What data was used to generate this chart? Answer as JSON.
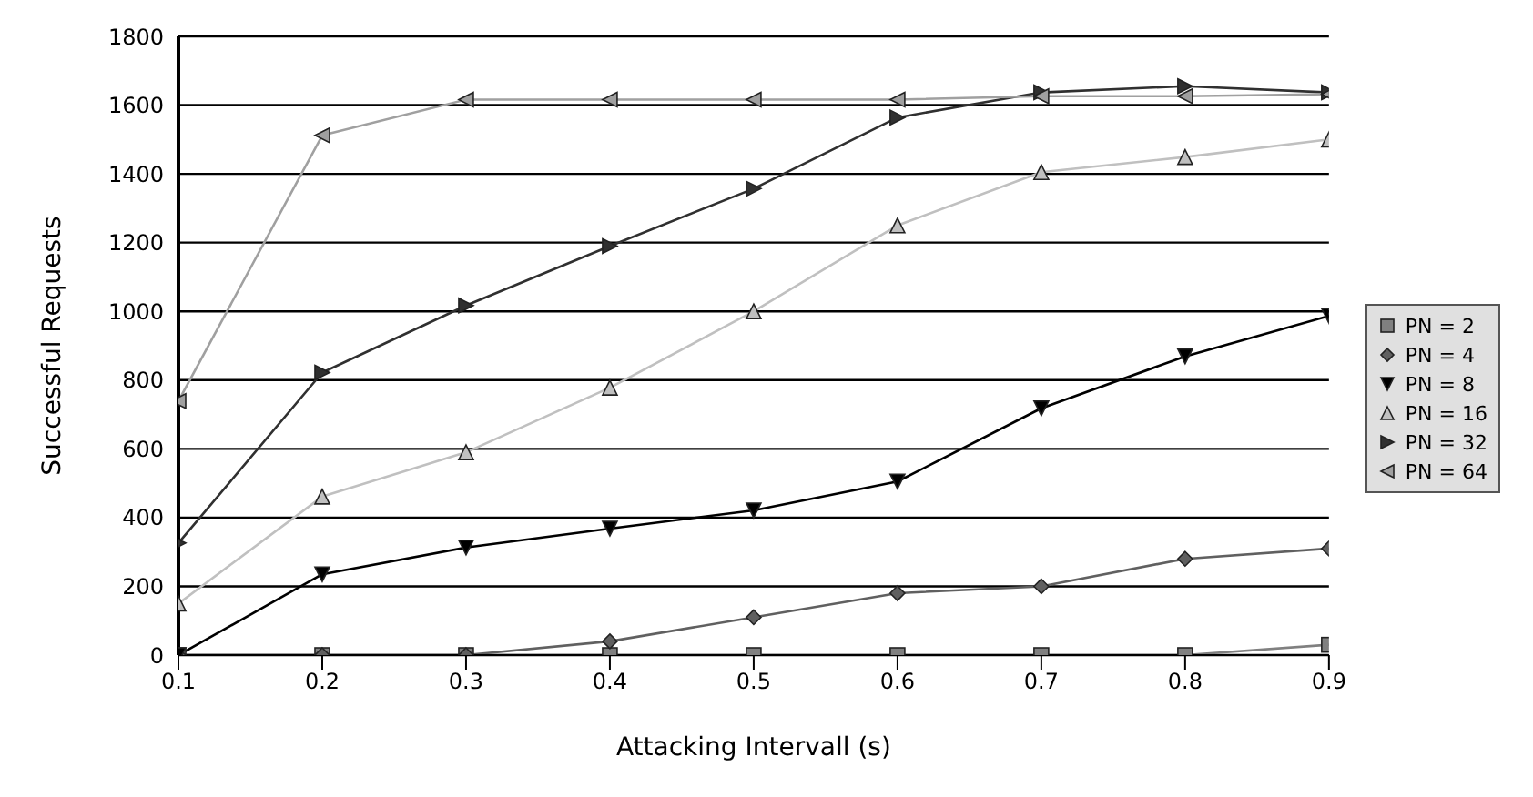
{
  "chart_data": {
    "type": "line",
    "xlabel": "Attacking Intervall (s)",
    "ylabel": "Successful Requests",
    "x": [
      0.1,
      0.2,
      0.3,
      0.4,
      0.5,
      0.6,
      0.7,
      0.8,
      0.9
    ],
    "xlim": [
      0.1,
      0.9
    ],
    "xticks": [
      0.1,
      0.2,
      0.3,
      0.4,
      0.5,
      0.6,
      0.7,
      0.8,
      0.9
    ],
    "ylim": [
      0,
      1800
    ],
    "yticks": [
      0,
      200,
      400,
      600,
      800,
      1000,
      1200,
      1400,
      1600,
      1800
    ],
    "grid": "y",
    "legend": "right",
    "series": [
      {
        "name": "PN = 2",
        "color": "#808080",
        "marker": "square",
        "values": [
          0,
          0,
          0,
          0,
          0,
          0,
          0,
          0,
          30
        ]
      },
      {
        "name": "PN = 4",
        "color": "#606060",
        "marker": "diamond",
        "values": [
          0,
          0,
          0,
          40,
          110,
          180,
          200,
          280,
          310
        ]
      },
      {
        "name": "PN = 8",
        "color": "#000000",
        "marker": "triangle-down",
        "values": [
          0,
          235,
          313,
          368,
          421,
          505,
          718,
          869,
          987
        ]
      },
      {
        "name": "PN = 16",
        "color": "#c0c0c0",
        "marker": "triangle",
        "values": [
          150,
          461,
          590,
          778,
          1000,
          1250,
          1405,
          1449,
          1500
        ]
      },
      {
        "name": "PN = 32",
        "color": "#303030",
        "marker": "triangle-right",
        "values": [
          326,
          822,
          1017,
          1190,
          1357,
          1564,
          1637,
          1655,
          1637
        ]
      },
      {
        "name": "PN = 64",
        "color": "#a0a0a0",
        "marker": "triangle-left",
        "values": [
          739,
          1512,
          1616,
          1616,
          1616,
          1616,
          1626,
          1626,
          1632
        ]
      }
    ]
  }
}
